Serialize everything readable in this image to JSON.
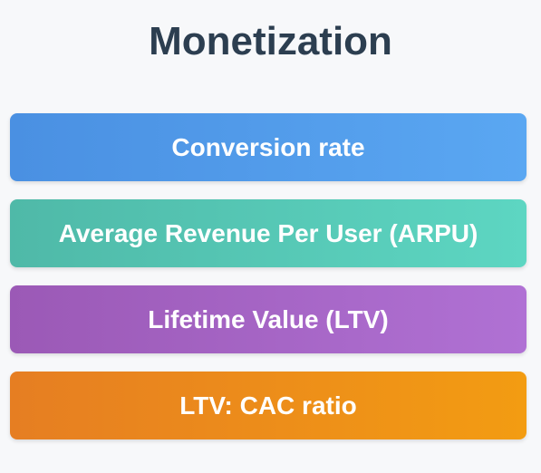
{
  "title": "Monetization",
  "metrics": [
    {
      "label": "Conversion rate",
      "color": "#4a90e2"
    },
    {
      "label": "Average Revenue Per User (ARPU)",
      "color": "#4fb9a8"
    },
    {
      "label": "Lifetime Value (LTV)",
      "color": "#9b59b6"
    },
    {
      "label": "LTV: CAC ratio",
      "color": "#e67e22"
    }
  ]
}
